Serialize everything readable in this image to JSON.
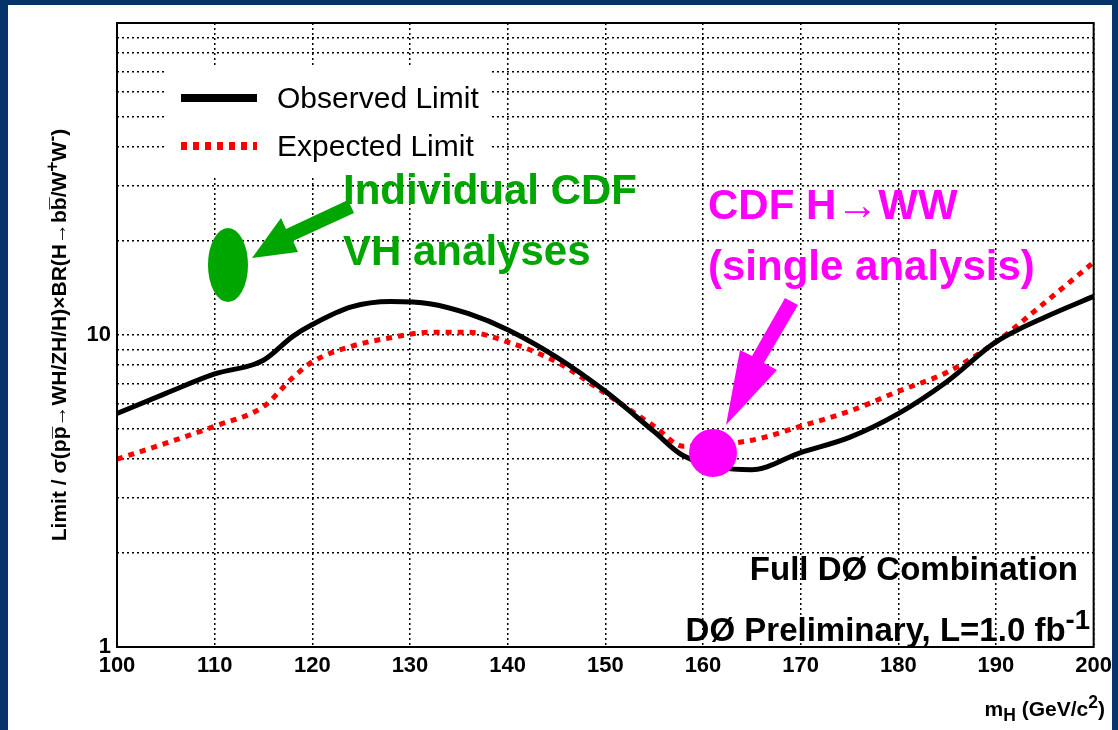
{
  "chart_data": {
    "type": "line",
    "xlabel": "m$_{H}$ (GeV/c$^{2}$)",
    "ylabel": "Limit / σ(pp̅→WH/ZH/H)×BR(H→bb̅/W$^{+}$W$^{-}$)",
    "log": "y",
    "grid": true,
    "legend": "top left",
    "marker": "none",
    "xlim": [
      100,
      200
    ],
    "xticks": [
      100,
      110,
      120,
      130,
      140,
      150,
      160,
      170,
      180,
      190,
      200
    ],
    "ylim": [
      1,
      100
    ],
    "yticks": [
      1,
      {
        "value": 2,
        "label": null
      },
      {
        "value": 3,
        "label": null
      },
      {
        "value": 4,
        "label": null
      },
      {
        "value": 5,
        "label": null
      },
      {
        "value": 6,
        "label": null
      },
      {
        "value": 7,
        "label": null
      },
      {
        "value": 8,
        "label": null
      },
      {
        "value": 9,
        "label": null
      },
      10,
      {
        "value": 20,
        "label": null
      },
      {
        "value": 30,
        "label": null
      },
      {
        "value": 40,
        "label": null
      },
      {
        "value": 50,
        "label": null
      },
      {
        "value": 60,
        "label": null
      },
      {
        "value": 70,
        "label": null
      },
      {
        "value": 80,
        "label": null
      },
      {
        "value": 90,
        "label": null
      },
      {
        "value": 100,
        "label": null
      }
    ],
    "x": [
      100,
      105,
      110,
      115,
      118,
      120,
      124,
      128,
      132,
      136,
      140,
      145,
      150,
      155,
      158,
      160,
      162,
      165,
      170,
      175,
      180,
      185,
      190,
      195,
      200
    ],
    "series": [
      {
        "name": "Observed Limit",
        "color": "#000000",
        "line_style": "solid",
        "values": [
          5.6,
          6.5,
          7.5,
          8.3,
          9.9,
          10.8,
          12.3,
          12.8,
          12.6,
          11.7,
          10.4,
          8.5,
          6.6,
          4.9,
          4.1,
          null,
          null,
          3.7,
          4.2,
          4.7,
          5.6,
          7.1,
          9.5,
          11.4,
          13.3
        ]
      },
      {
        "name": "Expected Limit",
        "color": "#ff0000",
        "line_style": "dotted",
        "values": [
          4.0,
          4.5,
          5.1,
          5.9,
          7.3,
          8.2,
          9.2,
          9.8,
          10.2,
          10.2,
          9.5,
          8.2,
          6.5,
          5.1,
          4.4,
          null,
          null,
          4.6,
          5.1,
          5.7,
          6.6,
          7.6,
          9.5,
          12.7,
          17.1
        ]
      }
    ],
    "annotations": [
      "Individual CDF\nVH analyses",
      "CDF H→WW\n(single analysis)",
      "Full DØ Combination",
      "DØ Preliminary, L=1.0 fb$^{-1}$"
    ]
  }
}
